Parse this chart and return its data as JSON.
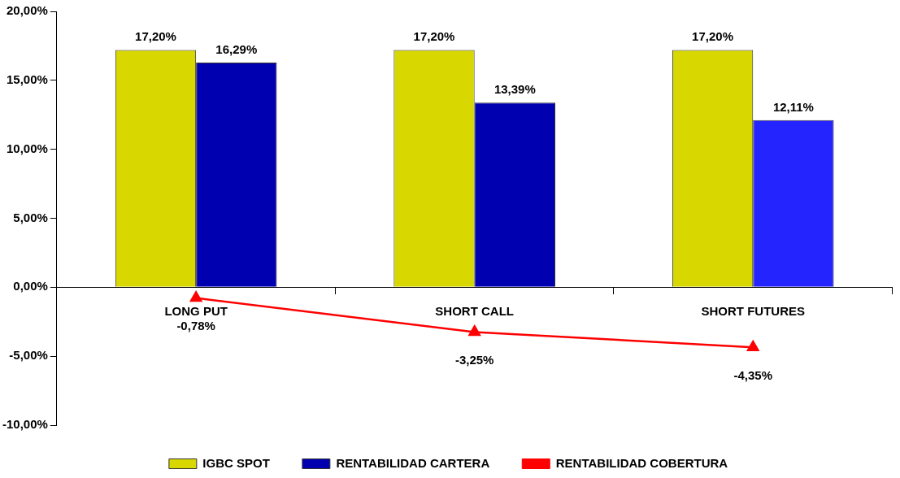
{
  "chart_data": {
    "type": "bar",
    "categories": [
      "LONG PUT",
      "SHORT CALL",
      "SHORT FUTURES"
    ],
    "series": [
      {
        "name": "IGBC SPOT",
        "color": "#d8d800",
        "values": [
          17.2,
          17.2,
          17.2
        ],
        "value_labels": [
          "17,20%",
          "17,20%",
          "17,20%"
        ]
      },
      {
        "name": "RENTABILIDAD CARTERA",
        "color": "#0000b0",
        "colors": [
          "#0000b0",
          "#0000b0",
          "#2424ff"
        ],
        "values": [
          16.29,
          13.39,
          12.11
        ],
        "value_labels": [
          "16,29%",
          "13,39%",
          "12,11%"
        ]
      },
      {
        "name": "RENTABILIDAD COBERTURA",
        "type": "line",
        "color": "#ff0000",
        "marker": "triangle",
        "values": [
          -0.78,
          -3.25,
          -4.35
        ],
        "value_labels": [
          "-0,78%",
          "-3,25%",
          "-4,35%"
        ]
      }
    ],
    "ylim": [
      -10,
      20
    ],
    "yticks": [
      {
        "value": -10,
        "label": "-10,00%"
      },
      {
        "value": -5,
        "label": "-5,00%"
      },
      {
        "value": 0,
        "label": "0,00%"
      },
      {
        "value": 5,
        "label": "5,00%"
      },
      {
        "value": 10,
        "label": "10,00%"
      },
      {
        "value": 15,
        "label": "15,00%"
      },
      {
        "value": 20,
        "label": "20,00%"
      }
    ],
    "grid": false,
    "legend": "bottom"
  }
}
